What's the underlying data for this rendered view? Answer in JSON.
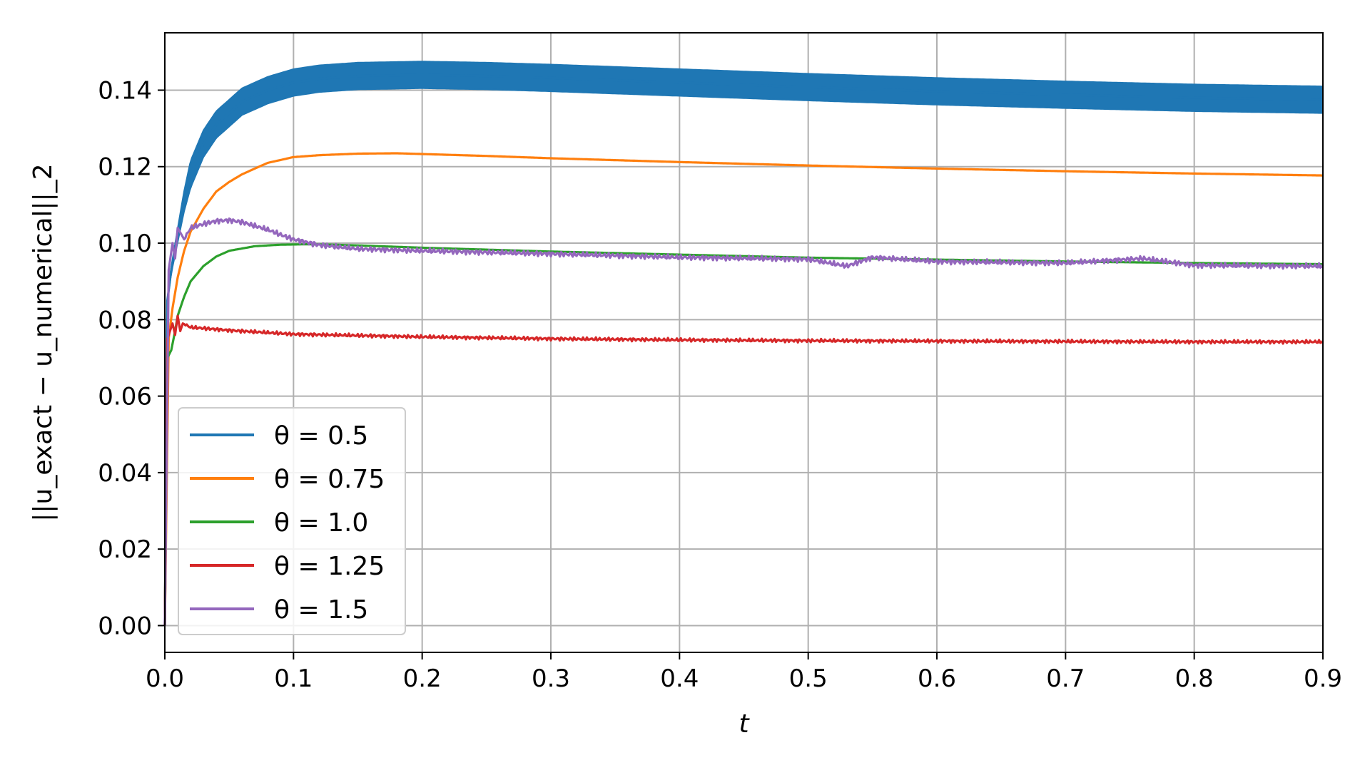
{
  "chart_data": {
    "type": "line",
    "title": "",
    "xlabel": "t",
    "ylabel": "||u_exact − u_numerical||_2",
    "xlim": [
      0.0,
      0.9
    ],
    "ylim": [
      -0.007,
      0.155
    ],
    "xticks": [
      "0.0",
      "0.1",
      "0.2",
      "0.3",
      "0.4",
      "0.5",
      "0.6",
      "0.7",
      "0.8",
      "0.9"
    ],
    "yticks": [
      "0.00",
      "0.02",
      "0.04",
      "0.06",
      "0.08",
      "0.10",
      "0.12",
      "0.14"
    ],
    "grid": true,
    "legend_position": "lower-left",
    "series": [
      {
        "name": "θ = 0.5",
        "color": "#1f77b4",
        "band_width": 0.007,
        "oscillation": "dense",
        "x": [
          0,
          0.002,
          0.005,
          0.01,
          0.015,
          0.02,
          0.03,
          0.04,
          0.05,
          0.06,
          0.08,
          0.1,
          0.12,
          0.15,
          0.2,
          0.25,
          0.3,
          0.4,
          0.5,
          0.6,
          0.7,
          0.8,
          0.9
        ],
        "y": [
          0.0,
          0.085,
          0.093,
          0.102,
          0.111,
          0.118,
          0.126,
          0.131,
          0.134,
          0.137,
          0.14,
          0.142,
          0.143,
          0.1437,
          0.144,
          0.1437,
          0.1432,
          0.142,
          0.1408,
          0.1397,
          0.1388,
          0.138,
          0.1375
        ]
      },
      {
        "name": "θ = 0.75",
        "color": "#ff7f0e",
        "x": [
          0,
          0.003,
          0.006,
          0.01,
          0.015,
          0.02,
          0.03,
          0.04,
          0.05,
          0.06,
          0.08,
          0.1,
          0.12,
          0.15,
          0.18,
          0.2,
          0.25,
          0.3,
          0.4,
          0.5,
          0.6,
          0.7,
          0.8,
          0.9
        ],
        "y": [
          0.0,
          0.075,
          0.083,
          0.091,
          0.098,
          0.103,
          0.109,
          0.1135,
          0.116,
          0.118,
          0.121,
          0.1225,
          0.123,
          0.1234,
          0.1235,
          0.1233,
          0.1228,
          0.1222,
          0.1212,
          0.1203,
          0.1195,
          0.1188,
          0.1182,
          0.1177
        ]
      },
      {
        "name": "θ = 1.0",
        "color": "#2ca02c",
        "x": [
          0,
          0.002,
          0.005,
          0.008,
          0.01,
          0.015,
          0.02,
          0.03,
          0.04,
          0.05,
          0.07,
          0.09,
          0.11,
          0.13,
          0.15,
          0.2,
          0.3,
          0.4,
          0.5,
          0.6,
          0.7,
          0.8,
          0.9
        ],
        "y": [
          0.0,
          0.07,
          0.072,
          0.077,
          0.081,
          0.086,
          0.09,
          0.094,
          0.0965,
          0.098,
          0.0992,
          0.0996,
          0.0997,
          0.0996,
          0.0994,
          0.0988,
          0.0978,
          0.097,
          0.0962,
          0.0957,
          0.0952,
          0.0948,
          0.0945
        ]
      },
      {
        "name": "θ = 1.25",
        "color": "#d62728",
        "x": [
          0,
          0.002,
          0.004,
          0.006,
          0.008,
          0.01,
          0.012,
          0.014,
          0.02,
          0.05,
          0.1,
          0.2,
          0.3,
          0.4,
          0.5,
          0.6,
          0.7,
          0.8,
          0.9
        ],
        "y": [
          0.0,
          0.075,
          0.077,
          0.079,
          0.076,
          0.081,
          0.077,
          0.079,
          0.078,
          0.0772,
          0.0762,
          0.0755,
          0.075,
          0.0747,
          0.0745,
          0.0744,
          0.0743,
          0.0742,
          0.0742
        ]
      },
      {
        "name": "θ = 1.5",
        "color": "#9467bd",
        "x": [
          0,
          0.003,
          0.006,
          0.008,
          0.01,
          0.015,
          0.02,
          0.03,
          0.04,
          0.05,
          0.06,
          0.07,
          0.08,
          0.09,
          0.1,
          0.12,
          0.15,
          0.2,
          0.3,
          0.4,
          0.5,
          0.53,
          0.55,
          0.6,
          0.7,
          0.76,
          0.8,
          0.9
        ],
        "y": [
          0.0,
          0.093,
          0.1,
          0.096,
          0.104,
          0.101,
          0.104,
          0.105,
          0.1058,
          0.106,
          0.1055,
          0.1045,
          0.1035,
          0.1022,
          0.101,
          0.0995,
          0.0985,
          0.098,
          0.0972,
          0.0963,
          0.0958,
          0.094,
          0.0963,
          0.0952,
          0.0948,
          0.096,
          0.0942,
          0.094
        ]
      }
    ]
  }
}
